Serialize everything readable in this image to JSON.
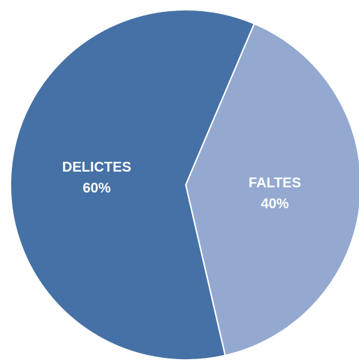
{
  "chart_data": {
    "type": "pie",
    "categories": [
      "DELICTES",
      "FALTES"
    ],
    "values": [
      60,
      40
    ],
    "value_labels": [
      "60%",
      "40%"
    ],
    "colors": [
      "#4571a6",
      "#93a9d0"
    ]
  }
}
